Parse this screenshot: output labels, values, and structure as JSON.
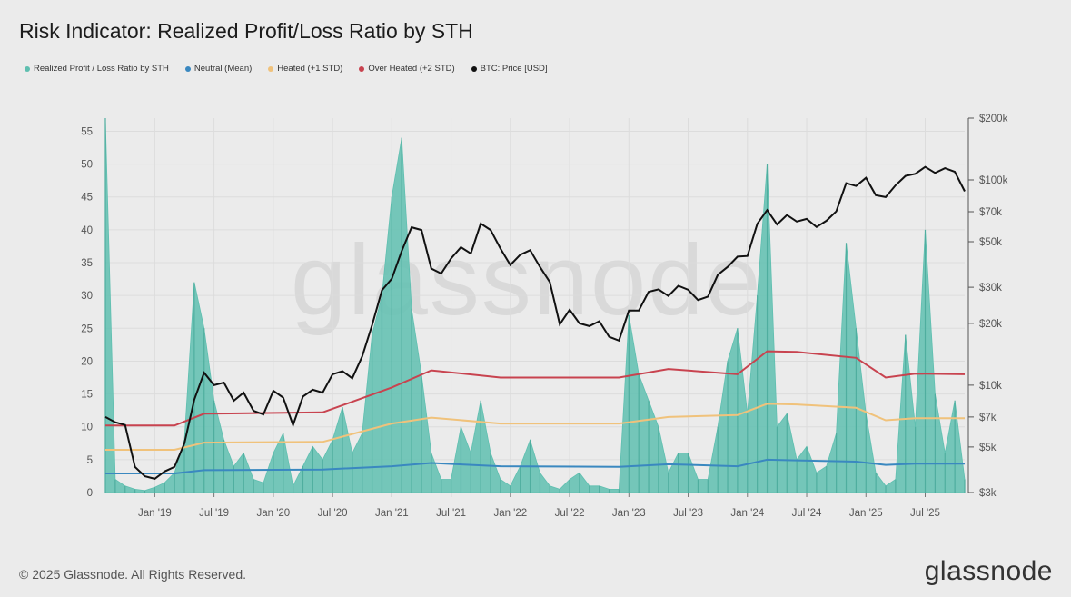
{
  "title": "Risk Indicator: Realized Profit/Loss Ratio by STH",
  "legend": [
    {
      "label": "Realized Profit / Loss Ratio by STH",
      "color": "#5fbfb0"
    },
    {
      "label": "Neutral (Mean)",
      "color": "#3a88c0"
    },
    {
      "label": "Heated (+1 STD)",
      "color": "#f0c27b"
    },
    {
      "label": "Over Heated (+2 STD)",
      "color": "#c8434f"
    },
    {
      "label": "BTC: Price [USD]",
      "color": "#111111"
    }
  ],
  "watermark": "glassnode",
  "footer": "© 2025 Glassnode. All Rights Reserved.",
  "brand": "glassnode",
  "chart_data": {
    "type": "line",
    "title": "Risk Indicator: Realized Profit/Loss Ratio by STH",
    "x_tick_labels": [
      "Jan '19",
      "Jul '19",
      "Jan '20",
      "Jul '20",
      "Jan '21",
      "Jul '21",
      "Jan '22",
      "Jul '22",
      "Jan '23",
      "Jul '23",
      "Jan '24",
      "Jul '24",
      "Jan '25",
      "Jul '25"
    ],
    "x_range": [
      "2018-08",
      "2025-11"
    ],
    "y_left": {
      "ticks": [
        0,
        5,
        10,
        15,
        20,
        25,
        30,
        35,
        40,
        45,
        50,
        55
      ],
      "range": [
        0,
        57
      ]
    },
    "y_right": {
      "scale": "log",
      "range": [
        3000,
        200000
      ],
      "ticks": [
        3000,
        5000,
        7000,
        10000,
        20000,
        30000,
        50000,
        70000,
        100000,
        200000
      ],
      "tick_labels": [
        "$3k",
        "$5k",
        "$7k",
        "$10k",
        "$20k",
        "$30k",
        "$50k",
        "$70k",
        "$100k",
        "$200k"
      ]
    },
    "grid": true,
    "legend_position": "top-left",
    "series": [
      {
        "name": "Realized Profit / Loss Ratio by STH",
        "axis": "left",
        "style": "area",
        "color": "#5fbfb0",
        "points": [
          [
            "2018-08",
            57
          ],
          [
            "2018-09",
            2
          ],
          [
            "2018-10",
            1
          ],
          [
            "2018-11",
            0.5
          ],
          [
            "2018-12",
            0.3
          ],
          [
            "2019-01",
            0.8
          ],
          [
            "2019-02",
            1.5
          ],
          [
            "2019-03",
            3
          ],
          [
            "2019-04",
            8
          ],
          [
            "2019-05",
            32
          ],
          [
            "2019-06",
            25
          ],
          [
            "2019-07",
            14
          ],
          [
            "2019-08",
            8
          ],
          [
            "2019-09",
            4
          ],
          [
            "2019-10",
            6
          ],
          [
            "2019-11",
            2
          ],
          [
            "2019-12",
            1.5
          ],
          [
            "2020-01",
            6
          ],
          [
            "2020-02",
            9
          ],
          [
            "2020-03",
            1
          ],
          [
            "2020-04",
            4
          ],
          [
            "2020-05",
            7
          ],
          [
            "2020-06",
            5
          ],
          [
            "2020-07",
            8
          ],
          [
            "2020-08",
            13
          ],
          [
            "2020-09",
            6
          ],
          [
            "2020-10",
            9
          ],
          [
            "2020-11",
            24
          ],
          [
            "2020-12",
            30
          ],
          [
            "2021-01",
            45
          ],
          [
            "2021-02",
            54
          ],
          [
            "2021-03",
            28
          ],
          [
            "2021-04",
            18
          ],
          [
            "2021-05",
            6
          ],
          [
            "2021-06",
            2
          ],
          [
            "2021-07",
            2
          ],
          [
            "2021-08",
            10
          ],
          [
            "2021-09",
            6
          ],
          [
            "2021-10",
            14
          ],
          [
            "2021-11",
            6
          ],
          [
            "2021-12",
            2
          ],
          [
            "2022-01",
            1
          ],
          [
            "2022-02",
            4
          ],
          [
            "2022-03",
            8
          ],
          [
            "2022-04",
            3
          ],
          [
            "2022-05",
            1
          ],
          [
            "2022-06",
            0.5
          ],
          [
            "2022-07",
            2
          ],
          [
            "2022-08",
            3
          ],
          [
            "2022-09",
            1
          ],
          [
            "2022-10",
            1
          ],
          [
            "2022-11",
            0.5
          ],
          [
            "2022-12",
            0.5
          ],
          [
            "2023-01",
            27
          ],
          [
            "2023-02",
            18
          ],
          [
            "2023-03",
            14
          ],
          [
            "2023-04",
            10
          ],
          [
            "2023-05",
            3
          ],
          [
            "2023-06",
            6
          ],
          [
            "2023-07",
            6
          ],
          [
            "2023-08",
            2
          ],
          [
            "2023-09",
            2
          ],
          [
            "2023-10",
            10
          ],
          [
            "2023-11",
            20
          ],
          [
            "2023-12",
            25
          ],
          [
            "2024-01",
            12
          ],
          [
            "2024-02",
            30
          ],
          [
            "2024-03",
            50
          ],
          [
            "2024-04",
            10
          ],
          [
            "2024-05",
            12
          ],
          [
            "2024-06",
            5
          ],
          [
            "2024-07",
            7
          ],
          [
            "2024-08",
            3
          ],
          [
            "2024-09",
            4
          ],
          [
            "2024-10",
            9
          ],
          [
            "2024-11",
            38
          ],
          [
            "2024-12",
            25
          ],
          [
            "2025-01",
            12
          ],
          [
            "2025-02",
            3
          ],
          [
            "2025-03",
            1
          ],
          [
            "2025-04",
            2
          ],
          [
            "2025-05",
            24
          ],
          [
            "2025-06",
            10
          ],
          [
            "2025-07",
            40
          ],
          [
            "2025-08",
            15
          ],
          [
            "2025-09",
            6
          ],
          [
            "2025-10",
            14
          ],
          [
            "2025-11",
            2
          ]
        ]
      },
      {
        "name": "Neutral (Mean)",
        "axis": "left",
        "style": "line",
        "color": "#3a88c0",
        "points": [
          [
            "2018-08",
            2.9
          ],
          [
            "2019-03",
            2.9
          ],
          [
            "2019-06",
            3.4
          ],
          [
            "2020-06",
            3.5
          ],
          [
            "2021-01",
            4.0
          ],
          [
            "2021-05",
            4.5
          ],
          [
            "2021-12",
            4.0
          ],
          [
            "2022-12",
            3.9
          ],
          [
            "2023-05",
            4.3
          ],
          [
            "2023-12",
            4.0
          ],
          [
            "2024-03",
            5.0
          ],
          [
            "2024-06",
            4.9
          ],
          [
            "2024-12",
            4.7
          ],
          [
            "2025-03",
            4.2
          ],
          [
            "2025-06",
            4.4
          ],
          [
            "2025-11",
            4.4
          ]
        ]
      },
      {
        "name": "Heated (+1 STD)",
        "axis": "left",
        "style": "line",
        "color": "#f0c27b",
        "points": [
          [
            "2018-08",
            6.5
          ],
          [
            "2019-03",
            6.5
          ],
          [
            "2019-06",
            7.6
          ],
          [
            "2020-06",
            7.7
          ],
          [
            "2021-01",
            10.5
          ],
          [
            "2021-05",
            11.4
          ],
          [
            "2021-12",
            10.5
          ],
          [
            "2022-12",
            10.5
          ],
          [
            "2023-05",
            11.5
          ],
          [
            "2023-12",
            11.8
          ],
          [
            "2024-03",
            13.5
          ],
          [
            "2024-06",
            13.4
          ],
          [
            "2024-12",
            12.9
          ],
          [
            "2025-03",
            11.0
          ],
          [
            "2025-06",
            11.3
          ],
          [
            "2025-11",
            11.3
          ]
        ]
      },
      {
        "name": "Over Heated (+2 STD)",
        "axis": "left",
        "style": "line",
        "color": "#c8434f",
        "points": [
          [
            "2018-08",
            10.2
          ],
          [
            "2019-03",
            10.2
          ],
          [
            "2019-06",
            12.0
          ],
          [
            "2020-06",
            12.2
          ],
          [
            "2021-01",
            16.0
          ],
          [
            "2021-05",
            18.6
          ],
          [
            "2021-12",
            17.5
          ],
          [
            "2022-12",
            17.5
          ],
          [
            "2023-05",
            18.8
          ],
          [
            "2023-12",
            18.0
          ],
          [
            "2024-03",
            21.5
          ],
          [
            "2024-06",
            21.4
          ],
          [
            "2024-12",
            20.5
          ],
          [
            "2025-03",
            17.5
          ],
          [
            "2025-06",
            18.1
          ],
          [
            "2025-11",
            18.0
          ]
        ]
      },
      {
        "name": "BTC: Price [USD]",
        "axis": "right",
        "style": "line",
        "color": "#111111",
        "points": [
          [
            "2018-08",
            7000
          ],
          [
            "2018-09",
            6600
          ],
          [
            "2018-10",
            6400
          ],
          [
            "2018-11",
            4000
          ],
          [
            "2018-12",
            3600
          ],
          [
            "2019-01",
            3500
          ],
          [
            "2019-02",
            3800
          ],
          [
            "2019-03",
            4000
          ],
          [
            "2019-04",
            5200
          ],
          [
            "2019-05",
            8500
          ],
          [
            "2019-06",
            11500
          ],
          [
            "2019-07",
            10000
          ],
          [
            "2019-08",
            10300
          ],
          [
            "2019-09",
            8400
          ],
          [
            "2019-10",
            9200
          ],
          [
            "2019-11",
            7500
          ],
          [
            "2019-12",
            7200
          ],
          [
            "2020-01",
            9400
          ],
          [
            "2020-02",
            8700
          ],
          [
            "2020-03",
            6400
          ],
          [
            "2020-04",
            8800
          ],
          [
            "2020-05",
            9500
          ],
          [
            "2020-06",
            9200
          ],
          [
            "2020-07",
            11300
          ],
          [
            "2020-08",
            11700
          ],
          [
            "2020-09",
            10800
          ],
          [
            "2020-10",
            13800
          ],
          [
            "2020-11",
            19600
          ],
          [
            "2020-12",
            29000
          ],
          [
            "2021-01",
            33000
          ],
          [
            "2021-02",
            45000
          ],
          [
            "2021-03",
            58800
          ],
          [
            "2021-04",
            57000
          ],
          [
            "2021-05",
            37000
          ],
          [
            "2021-06",
            35000
          ],
          [
            "2021-07",
            41500
          ],
          [
            "2021-08",
            47000
          ],
          [
            "2021-09",
            43800
          ],
          [
            "2021-10",
            61300
          ],
          [
            "2021-11",
            57000
          ],
          [
            "2021-12",
            46300
          ],
          [
            "2022-01",
            38500
          ],
          [
            "2022-02",
            43200
          ],
          [
            "2022-03",
            45500
          ],
          [
            "2022-04",
            37700
          ],
          [
            "2022-05",
            31800
          ],
          [
            "2022-06",
            19800
          ],
          [
            "2022-07",
            23300
          ],
          [
            "2022-08",
            20000
          ],
          [
            "2022-09",
            19400
          ],
          [
            "2022-10",
            20500
          ],
          [
            "2022-11",
            17200
          ],
          [
            "2022-12",
            16500
          ],
          [
            "2023-01",
            23100
          ],
          [
            "2023-02",
            23100
          ],
          [
            "2023-03",
            28500
          ],
          [
            "2023-04",
            29300
          ],
          [
            "2023-05",
            27200
          ],
          [
            "2023-06",
            30500
          ],
          [
            "2023-07",
            29200
          ],
          [
            "2023-08",
            26000
          ],
          [
            "2023-09",
            27000
          ],
          [
            "2023-10",
            34500
          ],
          [
            "2023-11",
            37700
          ],
          [
            "2023-12",
            42300
          ],
          [
            "2024-01",
            42600
          ],
          [
            "2024-02",
            61200
          ],
          [
            "2024-03",
            71300
          ],
          [
            "2024-04",
            60700
          ],
          [
            "2024-05",
            67500
          ],
          [
            "2024-06",
            62700
          ],
          [
            "2024-07",
            64600
          ],
          [
            "2024-08",
            59000
          ],
          [
            "2024-09",
            63300
          ],
          [
            "2024-10",
            70300
          ],
          [
            "2024-11",
            96400
          ],
          [
            "2024-12",
            93400
          ],
          [
            "2025-01",
            102400
          ],
          [
            "2025-02",
            84300
          ],
          [
            "2025-03",
            82500
          ],
          [
            "2025-04",
            94200
          ],
          [
            "2025-05",
            104600
          ],
          [
            "2025-06",
            107100
          ],
          [
            "2025-07",
            115700
          ],
          [
            "2025-08",
            108200
          ],
          [
            "2025-09",
            114000
          ],
          [
            "2025-10",
            109500
          ],
          [
            "2025-11",
            88000
          ]
        ]
      }
    ]
  }
}
